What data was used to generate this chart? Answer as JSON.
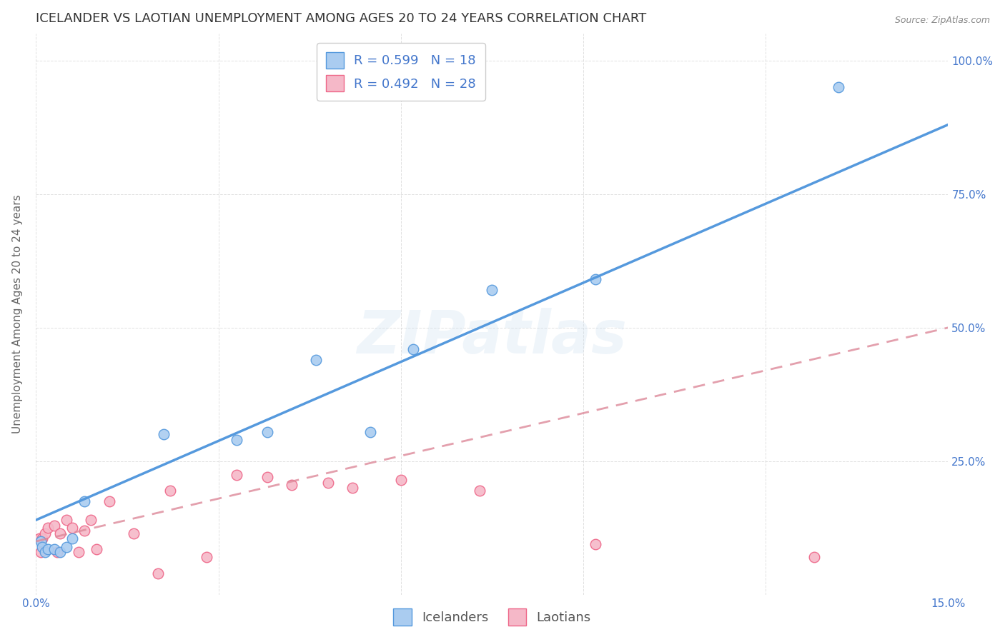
{
  "title": "ICELANDER VS LAOTIAN UNEMPLOYMENT AMONG AGES 20 TO 24 YEARS CORRELATION CHART",
  "source": "Source: ZipAtlas.com",
  "ylabel": "Unemployment Among Ages 20 to 24 years",
  "xlim": [
    0.0,
    0.15
  ],
  "ylim": [
    0.0,
    1.05
  ],
  "x_ticks": [
    0.0,
    0.03,
    0.06,
    0.09,
    0.12,
    0.15
  ],
  "y_ticks": [
    0.0,
    0.25,
    0.5,
    0.75,
    1.0
  ],
  "y_tick_labels": [
    "",
    "25.0%",
    "50.0%",
    "75.0%",
    "100.0%"
  ],
  "iceland_x": [
    0.0008,
    0.001,
    0.0015,
    0.002,
    0.003,
    0.004,
    0.005,
    0.006,
    0.008,
    0.021,
    0.033,
    0.038,
    0.046,
    0.055,
    0.062,
    0.075,
    0.092,
    0.132
  ],
  "iceland_y": [
    0.1,
    0.09,
    0.08,
    0.085,
    0.085,
    0.08,
    0.09,
    0.105,
    0.175,
    0.3,
    0.29,
    0.305,
    0.44,
    0.305,
    0.46,
    0.57,
    0.59,
    0.95
  ],
  "laotian_x": [
    0.0005,
    0.0008,
    0.001,
    0.0015,
    0.002,
    0.003,
    0.0035,
    0.004,
    0.005,
    0.006,
    0.007,
    0.008,
    0.009,
    0.01,
    0.012,
    0.016,
    0.02,
    0.022,
    0.028,
    0.033,
    0.038,
    0.042,
    0.048,
    0.052,
    0.06,
    0.073,
    0.092,
    0.128
  ],
  "laotian_y": [
    0.105,
    0.08,
    0.105,
    0.115,
    0.125,
    0.13,
    0.08,
    0.115,
    0.14,
    0.125,
    0.08,
    0.12,
    0.14,
    0.085,
    0.175,
    0.115,
    0.04,
    0.195,
    0.07,
    0.225,
    0.22,
    0.205,
    0.21,
    0.2,
    0.215,
    0.195,
    0.095,
    0.07
  ],
  "iceland_color": "#aaccf0",
  "laotian_color": "#f5b8c8",
  "iceland_edge_color": "#5599dd",
  "laotian_edge_color": "#ee6688",
  "iceland_line_color": "#5599dd",
  "laotian_line_color": "#dd8899",
  "iceland_R": 0.599,
  "iceland_N": 18,
  "laotian_R": 0.492,
  "laotian_N": 28,
  "legend_label_iceland": "Icelanders",
  "legend_label_laotian": "Laotians",
  "watermark": "ZIPatlas",
  "marker_size": 110,
  "title_fontsize": 13,
  "axis_label_fontsize": 11,
  "tick_fontsize": 11,
  "legend_fontsize": 13,
  "background_color": "#ffffff",
  "grid_color": "#cccccc",
  "legend_text_color": "#4477cc"
}
